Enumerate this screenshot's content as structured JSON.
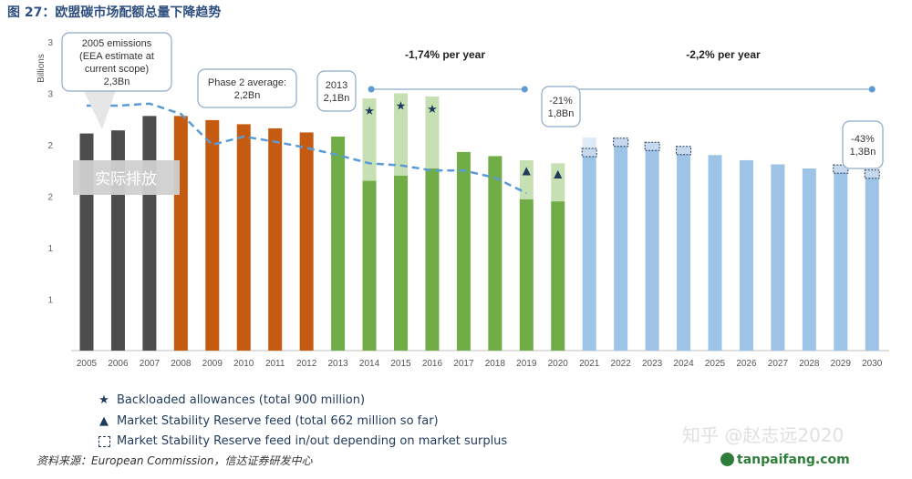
{
  "figure_title": "图 27：欧盟碳市场配额总量下降趋势",
  "source": "资料来源：European Commission，信达证券研发中心",
  "watermark": {
    "line1": "知乎 @赵志远2020",
    "line2": "tanpaifang.com"
  },
  "legend": [
    {
      "symbol": "★",
      "text": "Backloaded allowances (total 900 million)"
    },
    {
      "symbol": "▲",
      "text": "Market Stability Reserve feed (total 662 million so far)"
    },
    {
      "symbol": "dashed-box",
      "text": "Market Stability Reserve feed in/out depending on market surplus"
    }
  ],
  "colors": {
    "phase1": "#4d4d4d",
    "phase2": "#c55a11",
    "phase3": "#70ad47",
    "phase3_light": "#c6e0b4",
    "phase4": "#9dc3e6",
    "trend": "#5b9bd5",
    "annotation_box_border": "#8eaac9"
  },
  "chart_data": {
    "type": "bar",
    "ylabel": "Billions",
    "y_ticks": [
      "1",
      "1",
      "2",
      "2",
      "3",
      "3"
    ],
    "ylim": [
      0,
      3.5
    ],
    "categories": [
      "2005",
      "2006",
      "2007",
      "2008",
      "2009",
      "2010",
      "2011",
      "2012",
      "2013",
      "2014",
      "2015",
      "2016",
      "2017",
      "2018",
      "2019",
      "2020",
      "2021",
      "2022",
      "2023",
      "2024",
      "2025",
      "2026",
      "2027",
      "2028",
      "2029",
      "2030"
    ],
    "series": [
      {
        "values": [
          2.11,
          2.14,
          2.28,
          2.28,
          2.24,
          2.2,
          2.16,
          2.12,
          2.08,
          1.65,
          1.7,
          1.77,
          1.93,
          1.89,
          1.47,
          1.45,
          1.92,
          2.02,
          1.98,
          1.94,
          1.9,
          1.85,
          1.81,
          1.77,
          1.73,
          1.69
        ]
      }
    ],
    "light_stack": {
      "2014": 2.45,
      "2015": 2.5,
      "2016": 2.47,
      "2019": 1.85,
      "2020": 1.82,
      "2021": 2.07
    },
    "backloaded_markers": [
      "2014",
      "2015",
      "2016"
    ],
    "msr_markers": [
      "2019",
      "2020"
    ],
    "msr_dashed_boxes": {
      "2021": 1.92,
      "2022": 2.02,
      "2023": 1.98,
      "2024": 1.94,
      "2029": 1.76,
      "2030": 1.71
    },
    "actual_emissions_line": {
      "x": [
        "2005",
        "2006",
        "2007",
        "2008",
        "2009",
        "2010",
        "2011",
        "2012",
        "2013",
        "2014",
        "2015",
        "2016",
        "2017",
        "2018",
        "2019"
      ],
      "y": [
        2.38,
        2.38,
        2.4,
        2.3,
        2.0,
        2.08,
        2.03,
        1.97,
        1.9,
        1.82,
        1.8,
        1.75,
        1.75,
        1.68,
        1.53
      ]
    },
    "trend_lines": [
      {
        "x": [
          "2014",
          "2019"
        ],
        "y": [
          2.54,
          2.54
        ],
        "label": "-1,74% per year"
      },
      {
        "x": [
          "2020",
          "2030"
        ],
        "y": [
          2.54,
          2.54
        ],
        "label": "-2,2% per year"
      }
    ],
    "annotations": [
      {
        "text": [
          "2005 emissions",
          "(EEA estimate at",
          "current scope)",
          "2,3Bn"
        ]
      },
      {
        "text": [
          "Phase 2 average:",
          "2,2Bn"
        ]
      },
      {
        "text": [
          "2013",
          "2,1Bn"
        ]
      },
      {
        "text": [
          "-21%",
          "1,8Bn"
        ]
      },
      {
        "text": [
          "-43%",
          "1,3Bn"
        ]
      },
      {
        "text": [
          "实际排放"
        ]
      }
    ]
  }
}
